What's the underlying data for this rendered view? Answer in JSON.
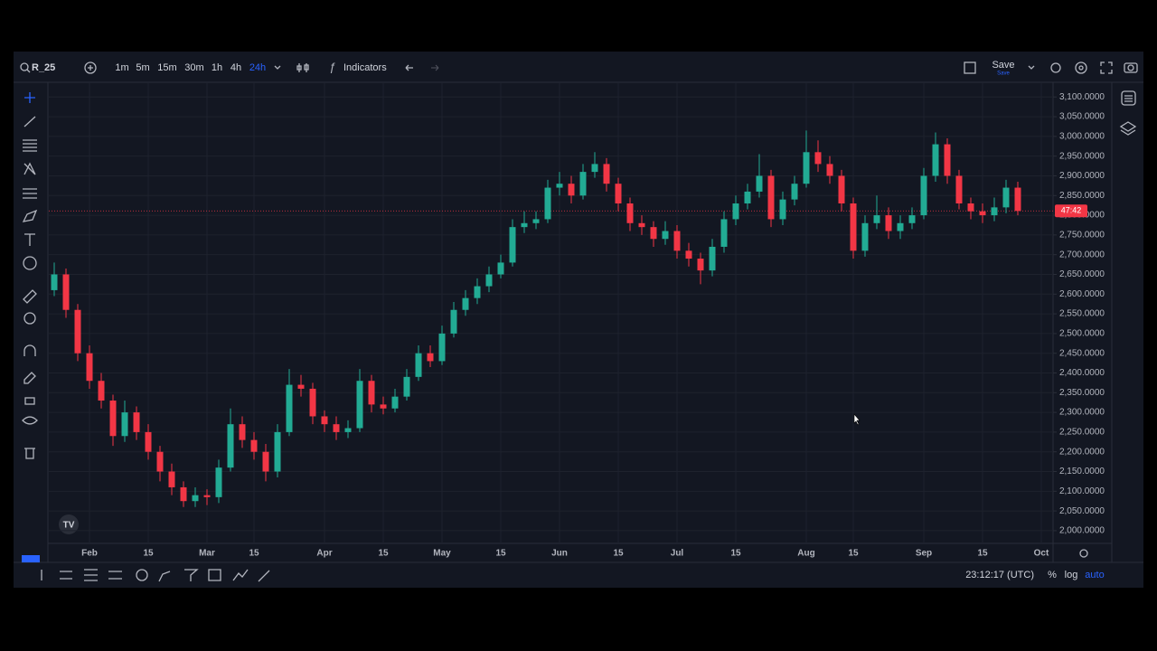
{
  "toolbar": {
    "symbol": "R_25",
    "intervals": [
      "1m",
      "5m",
      "15m",
      "30m",
      "1h",
      "4h",
      "24h"
    ],
    "active_interval": 6,
    "indicators": "Indicators",
    "save": "Save",
    "save_hint": "Save"
  },
  "chart_data": {
    "type": "candlestick",
    "categories": [
      null,
      null,
      null,
      "Feb",
      null,
      null,
      null,
      null,
      "15",
      null,
      null,
      null,
      null,
      "Mar",
      null,
      null,
      null,
      "15",
      null,
      null,
      null,
      null,
      null,
      "Apr",
      null,
      null,
      null,
      null,
      "15",
      null,
      null,
      null,
      null,
      "May",
      null,
      null,
      null,
      null,
      "15",
      null,
      null,
      null,
      null,
      "Jun",
      null,
      null,
      null,
      null,
      "15",
      null,
      null,
      null,
      null,
      "Jul",
      null,
      null,
      null,
      null,
      "15",
      null,
      null,
      null,
      null,
      null,
      "Aug",
      null,
      null,
      null,
      "15",
      null,
      null,
      null,
      null,
      null,
      "Sep",
      null,
      null,
      null,
      null,
      "15",
      null,
      null,
      null,
      null,
      "Oct"
    ],
    "open": [
      2610,
      2650,
      2560,
      2450,
      2380,
      2330,
      2240,
      2300,
      2250,
      2200,
      2150,
      2110,
      2075,
      2090,
      2085,
      2160,
      2270,
      2230,
      2200,
      2150,
      2250,
      2370,
      2360,
      2290,
      2270,
      2250,
      2260,
      2380,
      2320,
      2310,
      2340,
      2390,
      2450,
      2430,
      2500,
      2560,
      2590,
      2620,
      2650,
      2680,
      2770,
      2780,
      2790,
      2870,
      2880,
      2850,
      2910,
      2930,
      2880,
      2830,
      2780,
      2770,
      2740,
      2760,
      2710,
      2690,
      2660,
      2720,
      2790,
      2830,
      2860,
      2900,
      2790,
      2840,
      2880,
      2960,
      2930,
      2900,
      2830,
      2710,
      2780,
      2800,
      2760,
      2780,
      2800,
      2900,
      2980,
      2900,
      2830,
      2810,
      2800,
      2820,
      2870,
      null,
      null
    ],
    "high": [
      2680,
      2665,
      2575,
      2470,
      2400,
      2345,
      2330,
      2315,
      2270,
      2215,
      2170,
      2125,
      2110,
      2105,
      2180,
      2310,
      2290,
      2250,
      2220,
      2270,
      2410,
      2395,
      2375,
      2305,
      2290,
      2280,
      2410,
      2395,
      2340,
      2360,
      2410,
      2470,
      2470,
      2520,
      2580,
      2610,
      2640,
      2670,
      2700,
      2790,
      2810,
      2810,
      2890,
      2910,
      2900,
      2930,
      2960,
      2945,
      2895,
      2845,
      2800,
      2785,
      2785,
      2775,
      2730,
      2705,
      2740,
      2810,
      2850,
      2880,
      2955,
      2915,
      2860,
      2900,
      3015,
      2990,
      2950,
      2915,
      2845,
      2800,
      2850,
      2820,
      2800,
      2820,
      2920,
      3010,
      2995,
      2915,
      2845,
      2830,
      2845,
      2890,
      2885,
      null,
      null
    ],
    "low": [
      2595,
      2540,
      2430,
      2360,
      2310,
      2215,
      2225,
      2230,
      2180,
      2125,
      2090,
      2060,
      2060,
      2065,
      2070,
      2150,
      2210,
      2180,
      2125,
      2135,
      2240,
      2340,
      2270,
      2250,
      2230,
      2235,
      2250,
      2300,
      2295,
      2300,
      2330,
      2380,
      2415,
      2420,
      2490,
      2545,
      2575,
      2605,
      2640,
      2670,
      2755,
      2765,
      2780,
      2850,
      2830,
      2840,
      2895,
      2860,
      2810,
      2760,
      2750,
      2720,
      2725,
      2690,
      2670,
      2625,
      2645,
      2705,
      2775,
      2815,
      2845,
      2770,
      2775,
      2825,
      2870,
      2910,
      2880,
      2810,
      2690,
      2695,
      2765,
      2740,
      2740,
      2765,
      2790,
      2885,
      2880,
      2815,
      2790,
      2780,
      2785,
      2805,
      2800,
      null,
      null
    ],
    "close": [
      2650,
      2560,
      2450,
      2380,
      2330,
      2240,
      2300,
      2250,
      2200,
      2150,
      2110,
      2075,
      2090,
      2085,
      2160,
      2270,
      2230,
      2200,
      2150,
      2250,
      2370,
      2360,
      2290,
      2270,
      2250,
      2260,
      2380,
      2320,
      2310,
      2340,
      2390,
      2450,
      2430,
      2500,
      2560,
      2590,
      2620,
      2650,
      2680,
      2770,
      2780,
      2790,
      2870,
      2880,
      2850,
      2910,
      2930,
      2880,
      2830,
      2780,
      2770,
      2740,
      2760,
      2710,
      2690,
      2660,
      2720,
      2790,
      2830,
      2860,
      2900,
      2790,
      2840,
      2880,
      2960,
      2930,
      2900,
      2830,
      2710,
      2780,
      2800,
      2760,
      2780,
      2800,
      2900,
      2980,
      2900,
      2830,
      2810,
      2800,
      2820,
      2870,
      2811,
      null,
      null
    ],
    "up_color": "#22ab94",
    "down_color": "#f23645",
    "ylim": [
      1970,
      3135
    ],
    "yticks": [
      {
        "value": 2000,
        "label": "2,000.0000"
      },
      {
        "value": 2050,
        "label": "2,050.0000"
      },
      {
        "value": 2100,
        "label": "2,100.0000"
      },
      {
        "value": 2150,
        "label": "2,150.0000"
      },
      {
        "value": 2200,
        "label": "2,200.0000"
      },
      {
        "value": 2250,
        "label": "2,250.0000"
      },
      {
        "value": 2300,
        "label": "2,300.0000"
      },
      {
        "value": 2350,
        "label": "2,350.0000"
      },
      {
        "value": 2400,
        "label": "2,400.0000"
      },
      {
        "value": 2450,
        "label": "2,450.0000"
      },
      {
        "value": 2500,
        "label": "2,500.0000"
      },
      {
        "value": 2550,
        "label": "2,550.0000"
      },
      {
        "value": 2600,
        "label": "2,600.0000"
      },
      {
        "value": 2650,
        "label": "2,650.0000"
      },
      {
        "value": 2700,
        "label": "2,700.0000"
      },
      {
        "value": 2750,
        "label": "2,750.0000"
      },
      {
        "value": 2800,
        "label": "2,800.0000"
      },
      {
        "value": 2850,
        "label": "2,850.0000"
      },
      {
        "value": 2900,
        "label": "2,900.0000"
      },
      {
        "value": 2950,
        "label": "2,950.0000"
      },
      {
        "value": 3000,
        "label": "3,000.0000"
      },
      {
        "value": 3050,
        "label": "3,050.0000"
      },
      {
        "value": 3100,
        "label": "3,100.0000"
      }
    ],
    "grid": true,
    "log_scale": false,
    "price_line": {
      "value": 2811,
      "label": "47:42",
      "color": "#f23645"
    }
  },
  "footer": {
    "time": "23:12:17 (UTC)",
    "percent": "%",
    "log": "log",
    "auto": "auto"
  }
}
